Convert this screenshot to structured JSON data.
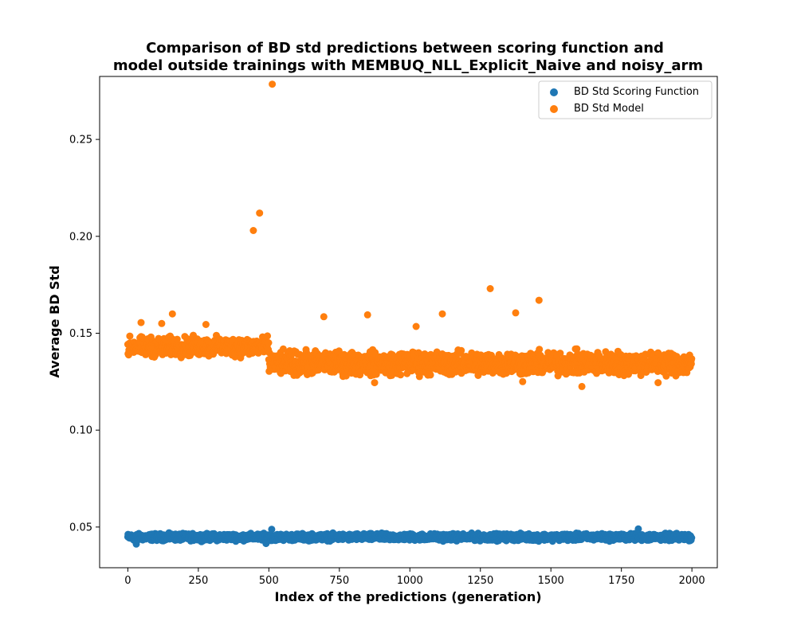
{
  "chart_data": {
    "type": "scatter",
    "title_lines": [
      "Comparison of BD std predictions between scoring function and",
      "model outside trainings with MEMBUQ_NLL_Explicit_Naive and noisy_arm"
    ],
    "xlabel": "Index of the predictions (generation)",
    "ylabel": "Average BD Std",
    "xlim": [
      -100,
      2090
    ],
    "ylim": [
      0.029,
      0.2825
    ],
    "x_ticks": [
      0,
      250,
      500,
      750,
      1000,
      1250,
      1500,
      1750,
      2000
    ],
    "y_ticks": [
      0.05,
      0.1,
      0.15,
      0.2,
      0.25
    ],
    "y_tick_labels": [
      "0.05",
      "0.10",
      "0.15",
      "0.20",
      "0.25"
    ],
    "x_tick_labels": [
      "0",
      "250",
      "500",
      "750",
      "1000",
      "1250",
      "1500",
      "1750",
      "2000"
    ],
    "grid": false,
    "legend_position": "top-right",
    "n_points": 2000,
    "series": [
      {
        "name": "BD Std Scoring Function",
        "color": "#1f77b4",
        "segments": [
          {
            "x_start": 0,
            "x_end": 1999,
            "mean": 0.0448,
            "spread": 0.0025
          }
        ],
        "notable_points": [
          {
            "x": 510,
            "y": 0.0488
          },
          {
            "x": 1810,
            "y": 0.049
          },
          {
            "x": 30,
            "y": 0.0412
          },
          {
            "x": 490,
            "y": 0.0415
          }
        ]
      },
      {
        "name": "BD Std Model",
        "color": "#ff7f0e",
        "segments": [
          {
            "x_start": 0,
            "x_end": 499,
            "mean": 0.143,
            "spread": 0.007
          },
          {
            "x_start": 500,
            "x_end": 1999,
            "mean": 0.1345,
            "spread": 0.0085
          }
        ],
        "notable_points": [
          {
            "x": 512,
            "y": 0.2785
          },
          {
            "x": 467,
            "y": 0.212
          },
          {
            "x": 445,
            "y": 0.203
          },
          {
            "x": 1285,
            "y": 0.173
          },
          {
            "x": 1458,
            "y": 0.167
          },
          {
            "x": 1375,
            "y": 0.1605
          },
          {
            "x": 1115,
            "y": 0.16
          },
          {
            "x": 158,
            "y": 0.16
          },
          {
            "x": 850,
            "y": 0.1595
          },
          {
            "x": 695,
            "y": 0.1585
          },
          {
            "x": 47,
            "y": 0.1555
          },
          {
            "x": 277,
            "y": 0.1545
          },
          {
            "x": 120,
            "y": 0.155
          },
          {
            "x": 1022,
            "y": 0.1535
          },
          {
            "x": 1610,
            "y": 0.1225
          },
          {
            "x": 875,
            "y": 0.1245
          },
          {
            "x": 1400,
            "y": 0.125
          },
          {
            "x": 1880,
            "y": 0.1245
          }
        ]
      }
    ]
  }
}
